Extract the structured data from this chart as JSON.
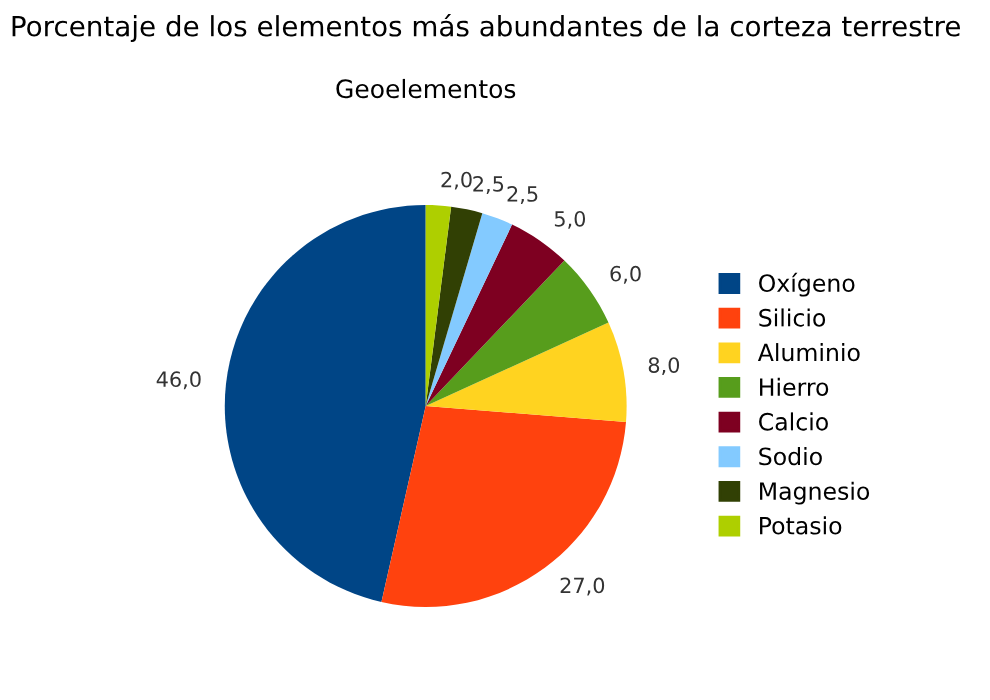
{
  "chart_data": {
    "type": "pie",
    "title": "Porcentaje de los elementos más abundantes de la corteza terrestre",
    "subtitle": "Geoelementos",
    "categories": [
      "Oxígeno",
      "Silicio",
      "Aluminio",
      "Hierro",
      "Calcio",
      "Sodio",
      "Magnesio",
      "Potasio"
    ],
    "values": [
      46.0,
      27.0,
      8.0,
      6.0,
      5.0,
      2.5,
      2.5,
      2.0
    ],
    "value_labels": [
      "46,0",
      "27,0",
      "8,0",
      "6,0",
      "5,0",
      "2,5",
      "2,5",
      "2,0"
    ],
    "colors": [
      "#004586",
      "#ff420e",
      "#ffd320",
      "#579d1c",
      "#7e0021",
      "#83caff",
      "#314004",
      "#aecf00"
    ],
    "legend": "right"
  }
}
